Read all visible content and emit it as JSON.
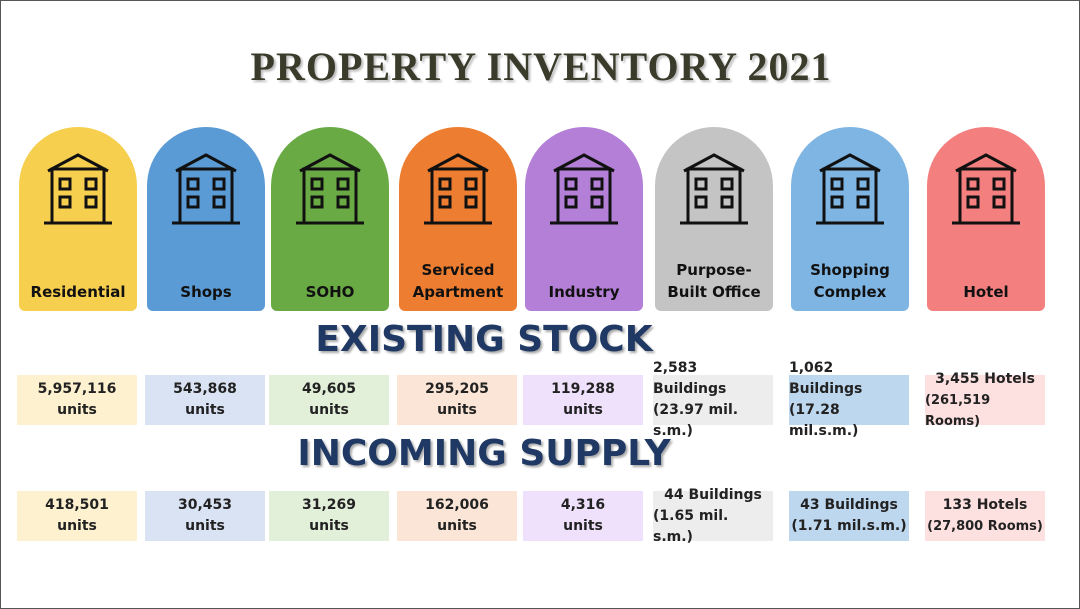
{
  "title": "PROPERTY INVENTORY 2021",
  "categories": [
    {
      "label": "Residential"
    },
    {
      "label": "Shops"
    },
    {
      "label": "SOHO"
    },
    {
      "label": "Serviced Apartment"
    },
    {
      "label": "Industry"
    },
    {
      "label": "Purpose-Built Office"
    },
    {
      "label": "Shopping Complex"
    },
    {
      "label": "Hotel"
    }
  ],
  "existing": {
    "heading": "EXISTING STOCK",
    "cells": [
      [
        "5,957,116",
        "units"
      ],
      [
        "543,868",
        "units"
      ],
      [
        "49,605",
        "units"
      ],
      [
        "295,205",
        "units"
      ],
      [
        "119,288",
        "units"
      ],
      [
        "2,583 Buildings",
        "(23.97 mil. s.m.)"
      ],
      [
        "1,062 Buildings",
        "(17.28 mil.s.m.)"
      ],
      [
        "3,455 Hotels",
        "(261,519 Rooms)"
      ]
    ]
  },
  "incoming": {
    "heading": "INCOMING SUPPLY",
    "cells": [
      [
        "418,501",
        "units"
      ],
      [
        "30,453",
        "units"
      ],
      [
        "31,269",
        "units"
      ],
      [
        "162,006",
        "units"
      ],
      [
        "4,316",
        "units"
      ],
      [
        "44 Buildings",
        "(1.65 mil. s.m.)"
      ],
      [
        "43 Buildings",
        "(1.71 mil.s.m.)"
      ],
      [
        "133 Hotels",
        "(27,800 Rooms)"
      ]
    ]
  }
}
